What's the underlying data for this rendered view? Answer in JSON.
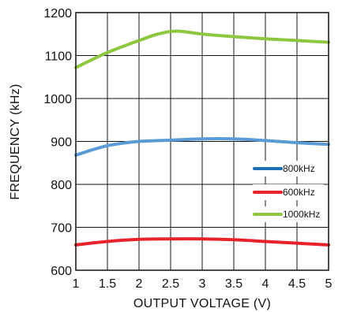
{
  "chart_data": {
    "type": "line",
    "title": "",
    "xlabel": "OUTPUT VOLTAGE (V)",
    "ylabel": "FREQUENCY (kHz)",
    "xlim": [
      1,
      5
    ],
    "ylim": [
      600,
      1200
    ],
    "x_ticks": [
      1,
      1.5,
      2,
      2.5,
      3,
      3.5,
      4,
      4.5,
      5
    ],
    "x_tick_labels": [
      "1",
      "1.5",
      "2",
      "2.5",
      "3",
      "3.5",
      "4",
      "4.5",
      "5"
    ],
    "y_ticks": [
      600,
      700,
      800,
      900,
      1000,
      1100,
      1200
    ],
    "y_tick_labels": [
      "600",
      "700",
      "800",
      "900",
      "1000",
      "1100",
      "1200"
    ],
    "grid": true,
    "legend": {
      "position": "right",
      "entries": [
        "800kHz",
        "600kHz",
        "1000kHz"
      ]
    },
    "series": [
      {
        "name": "800kHz",
        "color": "#5b9bd5",
        "legend_color": "#1f6fb5",
        "points": [
          [
            1.0,
            868
          ],
          [
            1.25,
            880
          ],
          [
            1.5,
            890
          ],
          [
            1.75,
            896
          ],
          [
            2.0,
            900
          ],
          [
            2.5,
            903
          ],
          [
            3.0,
            906
          ],
          [
            3.5,
            906
          ],
          [
            4.0,
            902
          ],
          [
            4.5,
            897
          ],
          [
            5.0,
            893
          ]
        ]
      },
      {
        "name": "600kHz",
        "color": "#e8222a",
        "legend_color": "#e8222a",
        "points": [
          [
            1.0,
            659
          ],
          [
            1.5,
            667
          ],
          [
            2.0,
            672
          ],
          [
            2.5,
            673
          ],
          [
            3.0,
            673
          ],
          [
            3.5,
            671
          ],
          [
            4.0,
            667
          ],
          [
            4.5,
            663
          ],
          [
            5.0,
            659
          ]
        ]
      },
      {
        "name": "1000kHz",
        "color": "#8dc63f",
        "legend_color": "#8dc63f",
        "points": [
          [
            1.0,
            1072
          ],
          [
            1.25,
            1090
          ],
          [
            1.5,
            1107
          ],
          [
            2.0,
            1135
          ],
          [
            2.3,
            1150
          ],
          [
            2.6,
            1157
          ],
          [
            3.0,
            1150
          ],
          [
            3.5,
            1144
          ],
          [
            4.0,
            1139
          ],
          [
            4.5,
            1135
          ],
          [
            5.0,
            1131
          ]
        ]
      }
    ]
  }
}
